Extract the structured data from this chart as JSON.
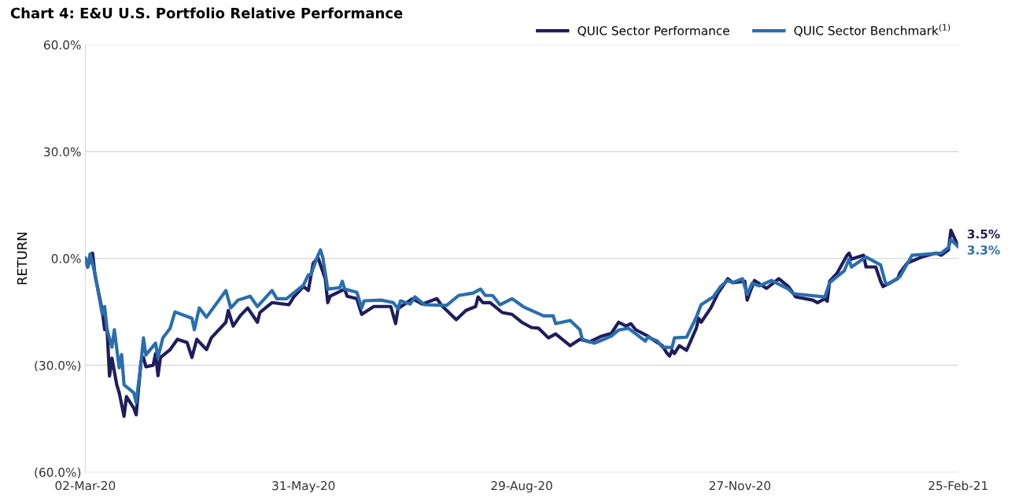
{
  "chart_data": {
    "type": "line",
    "title": "Chart 4: E&U U.S. Portfolio Relative Performance",
    "ylabel": "RETURN",
    "xlim": [
      "2020-03-02",
      "2021-02-25"
    ],
    "xticks": [
      {
        "value": "2020-03-02",
        "label": "02-Mar-20"
      },
      {
        "value": "2020-05-31",
        "label": "31-May-20"
      },
      {
        "value": "2020-08-29",
        "label": "29-Aug-20"
      },
      {
        "value": "2020-11-27",
        "label": "27-Nov-20"
      },
      {
        "value": "2021-02-25",
        "label": "25-Feb-21"
      }
    ],
    "ylim": [
      -60,
      60
    ],
    "yticks": [
      {
        "value": -60,
        "label": "(60.0%)"
      },
      {
        "value": -30,
        "label": "(30.0%)"
      },
      {
        "value": 0,
        "label": "0.0%"
      },
      {
        "value": 30,
        "label": "30.0%"
      },
      {
        "value": 60,
        "label": "60.0%"
      }
    ],
    "grid": "y",
    "legend": "top right",
    "line_style": "solid",
    "marker": "none",
    "series": [
      {
        "name": "QUIC Sector Performance",
        "color": "#1f1d5c",
        "x": [
          "2020-03-02",
          "2020-03-03",
          "2020-03-05",
          "2020-03-06",
          "2020-03-09",
          "2020-03-10",
          "2020-03-11",
          "2020-03-12",
          "2020-03-13",
          "2020-03-15",
          "2020-03-16",
          "2020-03-18",
          "2020-03-19",
          "2020-03-22",
          "2020-03-23",
          "2020-03-25",
          "2020-03-26",
          "2020-03-27",
          "2020-03-30",
          "2020-03-31",
          "2020-04-01",
          "2020-04-02",
          "2020-04-06",
          "2020-04-09",
          "2020-04-13",
          "2020-04-15",
          "2020-04-17",
          "2020-04-21",
          "2020-04-23",
          "2020-04-29",
          "2020-04-30",
          "2020-05-02",
          "2020-05-05",
          "2020-05-08",
          "2020-05-12",
          "2020-05-13",
          "2020-05-16",
          "2020-05-18",
          "2020-05-25",
          "2020-05-27",
          "2020-05-31",
          "2020-06-02",
          "2020-06-04",
          "2020-06-06",
          "2020-06-09",
          "2020-06-10",
          "2020-06-11",
          "2020-06-17",
          "2020-06-18",
          "2020-06-22",
          "2020-06-24",
          "2020-06-29",
          "2020-07-06",
          "2020-07-08",
          "2020-07-09",
          "2020-07-15",
          "2020-07-19",
          "2020-07-25",
          "2020-07-27",
          "2020-08-02",
          "2020-08-06",
          "2020-08-10",
          "2020-08-11",
          "2020-08-13",
          "2020-08-16",
          "2020-08-21",
          "2020-08-25",
          "2020-08-29",
          "2020-09-02",
          "2020-09-05",
          "2020-09-09",
          "2020-09-12",
          "2020-09-18",
          "2020-09-22",
          "2020-09-26",
          "2020-10-01",
          "2020-10-05",
          "2020-10-08",
          "2020-10-11",
          "2020-10-13",
          "2020-10-15",
          "2020-10-20",
          "2020-10-23",
          "2020-10-26",
          "2020-10-28",
          "2020-10-29",
          "2020-10-30",
          "2020-10-31",
          "2020-11-02",
          "2020-11-05",
          "2020-11-09",
          "2020-11-10",
          "2020-11-11",
          "2020-11-15",
          "2020-11-18",
          "2020-11-22",
          "2020-11-24",
          "2020-11-29",
          "2020-11-30",
          "2020-12-01",
          "2020-12-03",
          "2020-12-08",
          "2020-12-11",
          "2020-12-13",
          "2020-12-17",
          "2020-12-20",
          "2020-12-27",
          "2020-12-29",
          "2021-01-01",
          "2021-01-02",
          "2021-01-03",
          "2021-01-06",
          "2021-01-10",
          "2021-01-11",
          "2021-01-12",
          "2021-01-17",
          "2021-01-18",
          "2021-01-22",
          "2021-01-24",
          "2021-01-25",
          "2021-01-31",
          "2021-02-01",
          "2021-02-04",
          "2021-02-10",
          "2021-02-16",
          "2021-02-18",
          "2021-02-21",
          "2021-02-22",
          "2021-02-23",
          "2021-02-25"
        ],
        "values": [
          0,
          -2.4,
          1.5,
          -4.6,
          -14.6,
          -20,
          -20,
          -33,
          -28,
          -35.5,
          -37.7,
          -44.3,
          -38.8,
          -42,
          -43.9,
          -28.9,
          -27.8,
          -30.4,
          -30,
          -26.7,
          -32.9,
          -27.8,
          -25.6,
          -22.7,
          -23.6,
          -27.8,
          -22.7,
          -25.6,
          -22.3,
          -17.9,
          -14.6,
          -19,
          -16,
          -13.9,
          -17.9,
          -15.2,
          -13.5,
          -12.4,
          -13,
          -10.8,
          -7.9,
          -9,
          -1.3,
          0.2,
          -5.7,
          -12.4,
          -10.6,
          -8.6,
          -10.6,
          -11.3,
          -15.7,
          -13.5,
          -13.5,
          -18.3,
          -14.1,
          -11.3,
          -12.8,
          -11.3,
          -13.2,
          -17.2,
          -14.6,
          -13.5,
          -10.8,
          -12.4,
          -12.4,
          -15.2,
          -15.7,
          -17.9,
          -19.4,
          -19.6,
          -22.3,
          -21.2,
          -24.5,
          -22.7,
          -23.4,
          -21.8,
          -21,
          -17.9,
          -19,
          -18.3,
          -20,
          -21.8,
          -23.2,
          -24.5,
          -26.7,
          -27.4,
          -25.8,
          -26.7,
          -24.5,
          -25.8,
          -19.6,
          -16.8,
          -17.9,
          -13.9,
          -9.7,
          -5.7,
          -6.8,
          -6.4,
          -11.7,
          -9.7,
          -6.2,
          -8.4,
          -6.8,
          -5.7,
          -7.9,
          -10.8,
          -11.7,
          -12.4,
          -11.3,
          -12,
          -6.4,
          -4.2,
          0.7,
          1.5,
          -0.2,
          0.9,
          -2.4,
          -2.4,
          -6.4,
          -7.9,
          -5.7,
          -4,
          -1.3,
          0.4,
          1.5,
          0.9,
          2.4,
          7.9,
          6.4,
          3.5
        ]
      },
      {
        "name": "QUIC Sector Benchmark$^{(1)}$",
        "color": "#2a6ead",
        "x": [
          "2020-03-02",
          "2020-03-03",
          "2020-03-04",
          "2020-03-06",
          "2020-03-09",
          "2020-03-10",
          "2020-03-11",
          "2020-03-13",
          "2020-03-14",
          "2020-03-16",
          "2020-03-17",
          "2020-03-18",
          "2020-03-22",
          "2020-03-23",
          "2020-03-25",
          "2020-03-26",
          "2020-03-27",
          "2020-03-31",
          "2020-04-01",
          "2020-04-03",
          "2020-04-06",
          "2020-04-08",
          "2020-04-15",
          "2020-04-16",
          "2020-04-18",
          "2020-04-21",
          "2020-04-29",
          "2020-05-01",
          "2020-05-04",
          "2020-05-09",
          "2020-05-12",
          "2020-05-18",
          "2020-05-20",
          "2020-05-24",
          "2020-05-31",
          "2020-06-02",
          "2020-06-03",
          "2020-06-06",
          "2020-06-07",
          "2020-06-08",
          "2020-06-10",
          "2020-06-15",
          "2020-06-16",
          "2020-06-17",
          "2020-06-22",
          "2020-06-24",
          "2020-06-25",
          "2020-07-02",
          "2020-07-07",
          "2020-07-09",
          "2020-07-10",
          "2020-07-14",
          "2020-07-16",
          "2020-07-20",
          "2020-07-29",
          "2020-08-03",
          "2020-08-09",
          "2020-08-12",
          "2020-08-14",
          "2020-08-17",
          "2020-08-20",
          "2020-08-25",
          "2020-08-30",
          "2020-09-07",
          "2020-09-11",
          "2020-09-12",
          "2020-09-18",
          "2020-09-22",
          "2020-09-23",
          "2020-09-28",
          "2020-10-05",
          "2020-10-08",
          "2020-10-12",
          "2020-10-19",
          "2020-10-20",
          "2020-10-24",
          "2020-10-26",
          "2020-10-30",
          "2020-10-31",
          "2020-11-05",
          "2020-11-09",
          "2020-11-11",
          "2020-11-16",
          "2020-11-19",
          "2020-11-22",
          "2020-11-24",
          "2020-11-28",
          "2020-11-30",
          "2020-12-02",
          "2020-12-05",
          "2020-12-10",
          "2020-12-17",
          "2020-12-19",
          "2021-01-01",
          "2021-01-03",
          "2021-01-09",
          "2021-01-11",
          "2021-01-12",
          "2021-01-18",
          "2021-01-24",
          "2021-01-26",
          "2021-01-27",
          "2021-02-01",
          "2021-02-06",
          "2021-02-18",
          "2021-02-21",
          "2021-02-22",
          "2021-02-25"
        ],
        "values": [
          0,
          -2.4,
          1.3,
          -4.2,
          -15.7,
          -13.5,
          -20,
          -24.9,
          -20,
          -30.7,
          -27,
          -35.5,
          -37.7,
          -40.4,
          -29.3,
          -22.3,
          -27.1,
          -23.8,
          -27.8,
          -22.3,
          -19.6,
          -15,
          -16.8,
          -20,
          -13.9,
          -16.5,
          -9,
          -13.9,
          -11.7,
          -10.6,
          -13.5,
          -9,
          -11.3,
          -11.3,
          -7.5,
          -4.6,
          -4.6,
          0.9,
          2.4,
          0.2,
          -8.6,
          -8.2,
          -6.4,
          -8.6,
          -9.5,
          -13.9,
          -11.9,
          -11.7,
          -12.4,
          -14.1,
          -11.9,
          -12.8,
          -10.8,
          -13,
          -13.2,
          -10.4,
          -9.7,
          -8.6,
          -10.4,
          -10.4,
          -13,
          -11.3,
          -13.7,
          -16.1,
          -16.1,
          -18.3,
          -17.4,
          -20,
          -22.7,
          -23.8,
          -21.8,
          -20.1,
          -19.6,
          -23.2,
          -22.1,
          -23.2,
          -24.9,
          -25,
          -22.3,
          -22.1,
          -16.5,
          -13,
          -10.8,
          -7.9,
          -6.2,
          -6.8,
          -5.7,
          -10.1,
          -7,
          -7.7,
          -6.2,
          -8.6,
          -9.9,
          -10.8,
          -6.8,
          -3.5,
          -0.2,
          -2.4,
          0.4,
          -1.8,
          -6.8,
          -7.3,
          -5.1,
          0.9,
          1.5,
          3.1,
          5.3,
          3.3
        ]
      }
    ],
    "annotations": [
      {
        "text": "3.5%",
        "x": "2021-02-25",
        "y": 3.5
      },
      {
        "text": "3.3%",
        "x": "2021-02-25",
        "y": 3.3
      }
    ]
  }
}
